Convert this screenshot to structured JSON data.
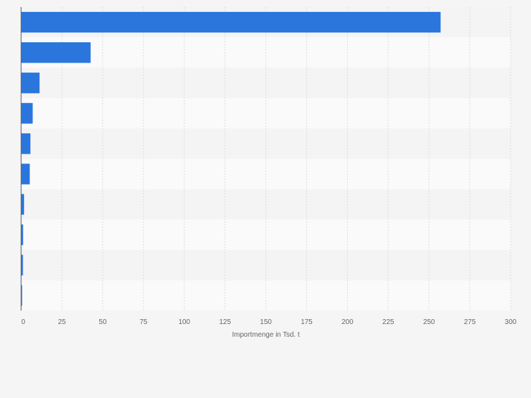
{
  "chart_data": {
    "type": "bar",
    "orientation": "horizontal",
    "categories": [
      "",
      "",
      "",
      "",
      "",
      "",
      "",
      "",
      "",
      ""
    ],
    "values": [
      257.1,
      42.6,
      11.3,
      7.1,
      5.7,
      5.3,
      1.8,
      1.2,
      1.1,
      0.6
    ],
    "xlabel": "Importmenge in Tsd. t",
    "ylabel": "",
    "title": "",
    "xlim": [
      0,
      300
    ],
    "xticks": [
      0,
      25,
      50,
      75,
      100,
      125,
      150,
      175,
      200,
      225,
      250,
      275,
      300
    ],
    "grid": true,
    "legend": "none",
    "bar_color": "#2a76dd",
    "band_colors": [
      "#f4f4f4",
      "#fafafa"
    ]
  }
}
